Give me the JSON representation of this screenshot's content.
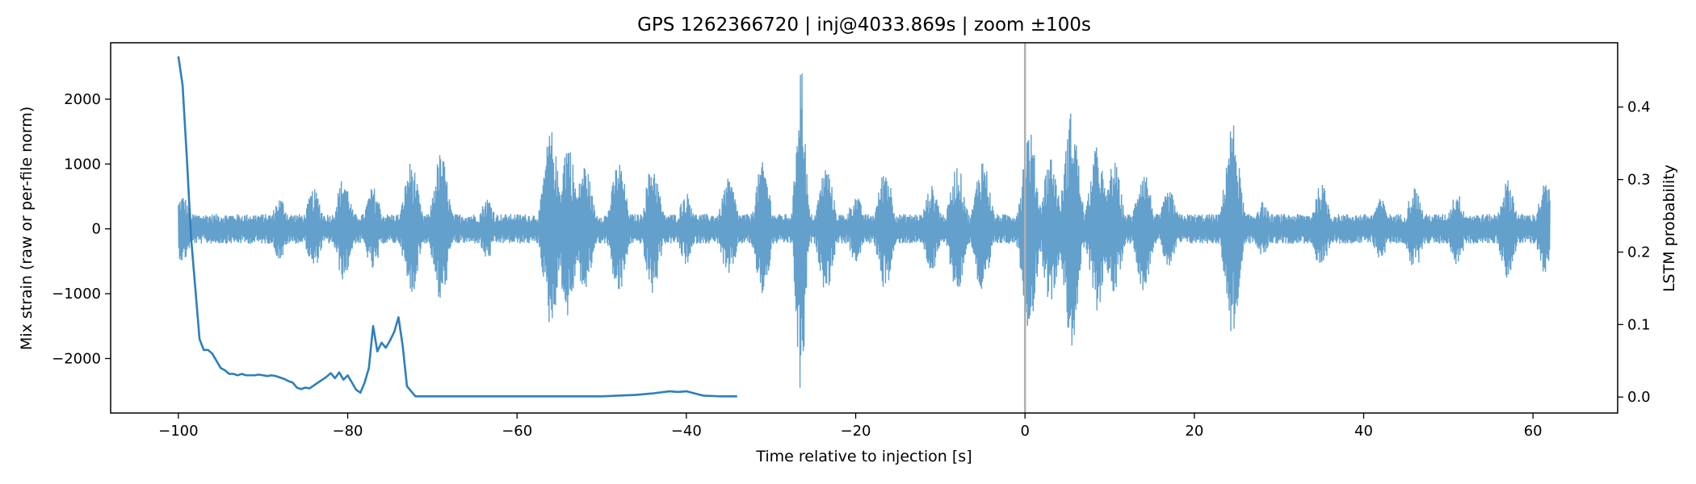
{
  "chart_data": {
    "type": "line",
    "title": "GPS 1262366720 | inj@4033.869s | zoom ±100s",
    "xlabel": "Time relative to injection [s]",
    "ylabel_left": "Mix strain (raw or per-file norm)",
    "ylabel_right": "LSTM probability",
    "xlim": [
      -108,
      70
    ],
    "ylim_left": [
      -2840,
      2870
    ],
    "ylim_right": [
      -0.022,
      0.4887
    ],
    "x_ticks": [
      -100,
      -80,
      -60,
      -40,
      -20,
      0,
      20,
      40,
      60
    ],
    "x_tick_labels": [
      "−100",
      "−80",
      "−60",
      "−40",
      "−20",
      "0",
      "20",
      "40",
      "60"
    ],
    "y_left_ticks": [
      -2000,
      -1000,
      0,
      1000,
      2000
    ],
    "y_left_tick_labels": [
      "−2000",
      "−1000",
      "0",
      "1000",
      "2000"
    ],
    "y_right_ticks": [
      0.0,
      0.1,
      0.2,
      0.3,
      0.4
    ],
    "y_right_tick_labels": [
      "0.0",
      "0.1",
      "0.2",
      "0.3",
      "0.4"
    ],
    "injection_marker_x": 0,
    "strain_series": {
      "name": "Mix strain",
      "color": "#5b9bc9",
      "x_range": [
        -100,
        62
      ],
      "base_amplitude": 230,
      "bursts": [
        {
          "t": -99.5,
          "amp": 520
        },
        {
          "t": -88,
          "amp": 480
        },
        {
          "t": -84,
          "amp": 620
        },
        {
          "t": -80.5,
          "amp": 800
        },
        {
          "t": -77,
          "amp": 650
        },
        {
          "t": -72.5,
          "amp": 1050
        },
        {
          "t": -69,
          "amp": 1180
        },
        {
          "t": -63.5,
          "amp": 480
        },
        {
          "t": -56,
          "amp": 1530
        },
        {
          "t": -54,
          "amp": 1380
        },
        {
          "t": -52,
          "amp": 1010
        },
        {
          "t": -48,
          "amp": 1050
        },
        {
          "t": -44,
          "amp": 1020
        },
        {
          "t": -40,
          "amp": 560
        },
        {
          "t": -35,
          "amp": 780
        },
        {
          "t": -31,
          "amp": 1030
        },
        {
          "t": -26.5,
          "amp": 2650
        },
        {
          "t": -23.5,
          "amp": 980
        },
        {
          "t": -20,
          "amp": 520
        },
        {
          "t": -16.5,
          "amp": 950
        },
        {
          "t": -11,
          "amp": 670
        },
        {
          "t": -8,
          "amp": 1000
        },
        {
          "t": -5,
          "amp": 1120
        },
        {
          "t": 0.5,
          "amp": 1550
        },
        {
          "t": 3,
          "amp": 1150
        },
        {
          "t": 5.5,
          "amp": 1830
        },
        {
          "t": 8.5,
          "amp": 1280
        },
        {
          "t": 10.5,
          "amp": 1050
        },
        {
          "t": 14,
          "amp": 950
        },
        {
          "t": 17,
          "amp": 600
        },
        {
          "t": 24.5,
          "amp": 1650
        },
        {
          "t": 28,
          "amp": 420
        },
        {
          "t": 35,
          "amp": 700
        },
        {
          "t": 42,
          "amp": 470
        },
        {
          "t": 46,
          "amp": 650
        },
        {
          "t": 51,
          "amp": 560
        },
        {
          "t": 57,
          "amp": 760
        },
        {
          "t": 61.5,
          "amp": 720
        }
      ]
    },
    "probability_series": {
      "name": "LSTM probability",
      "color": "#2f7fba",
      "x": [
        -100,
        -99.5,
        -99,
        -98.5,
        -98,
        -97.5,
        -97,
        -96.5,
        -96,
        -95.5,
        -95,
        -94.5,
        -94,
        -93.5,
        -93,
        -92.5,
        -92,
        -91.5,
        -91,
        -90.5,
        -90,
        -89.5,
        -89,
        -88.5,
        -88,
        -87.5,
        -87,
        -86.5,
        -86,
        -85.5,
        -85,
        -84.5,
        -84,
        -83.5,
        -83,
        -82.5,
        -82,
        -81.5,
        -81,
        -80.5,
        -80,
        -79.5,
        -79,
        -78.5,
        -78,
        -77.5,
        -77,
        -76.5,
        -76,
        -75.5,
        -75,
        -74.5,
        -74,
        -73.5,
        -73,
        -72,
        -70,
        -65,
        -60,
        -55,
        -50,
        -48,
        -46,
        -44,
        -42,
        -41,
        -40,
        -39,
        -38,
        -36,
        -34
      ],
      "values": [
        0.47,
        0.43,
        0.33,
        0.22,
        0.15,
        0.08,
        0.065,
        0.065,
        0.06,
        0.05,
        0.04,
        0.037,
        0.032,
        0.032,
        0.03,
        0.032,
        0.03,
        0.03,
        0.03,
        0.031,
        0.03,
        0.029,
        0.03,
        0.029,
        0.027,
        0.025,
        0.022,
        0.02,
        0.013,
        0.011,
        0.013,
        0.012,
        0.016,
        0.02,
        0.024,
        0.028,
        0.033,
        0.026,
        0.034,
        0.024,
        0.03,
        0.02,
        0.01,
        0.006,
        0.02,
        0.04,
        0.098,
        0.063,
        0.075,
        0.068,
        0.078,
        0.09,
        0.11,
        0.07,
        0.015,
        0.001,
        0.001,
        0.001,
        0.001,
        0.001,
        0.001,
        0.002,
        0.003,
        0.005,
        0.008,
        0.007,
        0.008,
        0.005,
        0.002,
        0.001,
        0.001
      ]
    }
  }
}
